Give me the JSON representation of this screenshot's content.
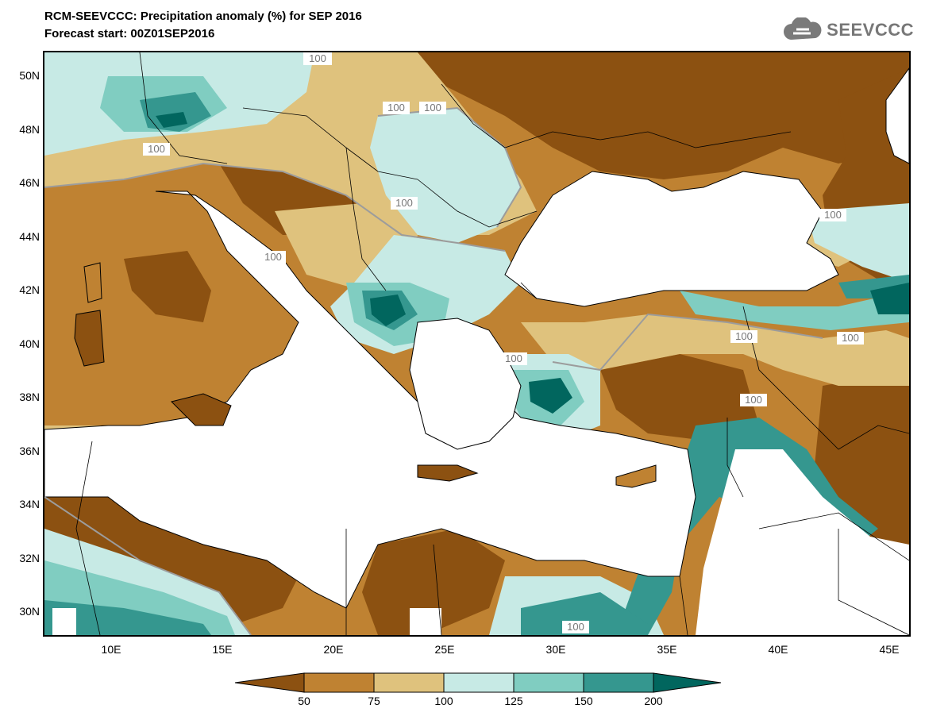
{
  "title": {
    "line1": "RCM-SEEVCCC: Precipitation anomaly (%) for SEP 2016",
    "line2": "Forecast start: 00Z01SEP2016"
  },
  "logo": {
    "text": "SEEVCCC",
    "icon": "cloud-icon"
  },
  "axes": {
    "lat_labels": [
      "50N",
      "48N",
      "46N",
      "44N",
      "42N",
      "40N",
      "38N",
      "36N",
      "34N",
      "32N",
      "30N"
    ],
    "lon_labels": [
      "10E",
      "15E",
      "20E",
      "25E",
      "30E",
      "35E",
      "40E",
      "45E"
    ]
  },
  "contour_labels": [
    "100",
    "100",
    "100",
    "100",
    "100",
    "100",
    "100",
    "100",
    "100",
    "100",
    "100",
    "100"
  ],
  "colorbar": {
    "labels": [
      "50",
      "75",
      "100",
      "125",
      "150",
      "200"
    ],
    "colors": [
      "#8c5111",
      "#bf8232",
      "#dfc27d",
      "#c7eae5",
      "#80cdc1",
      "#35978f",
      "#01665e"
    ]
  }
}
